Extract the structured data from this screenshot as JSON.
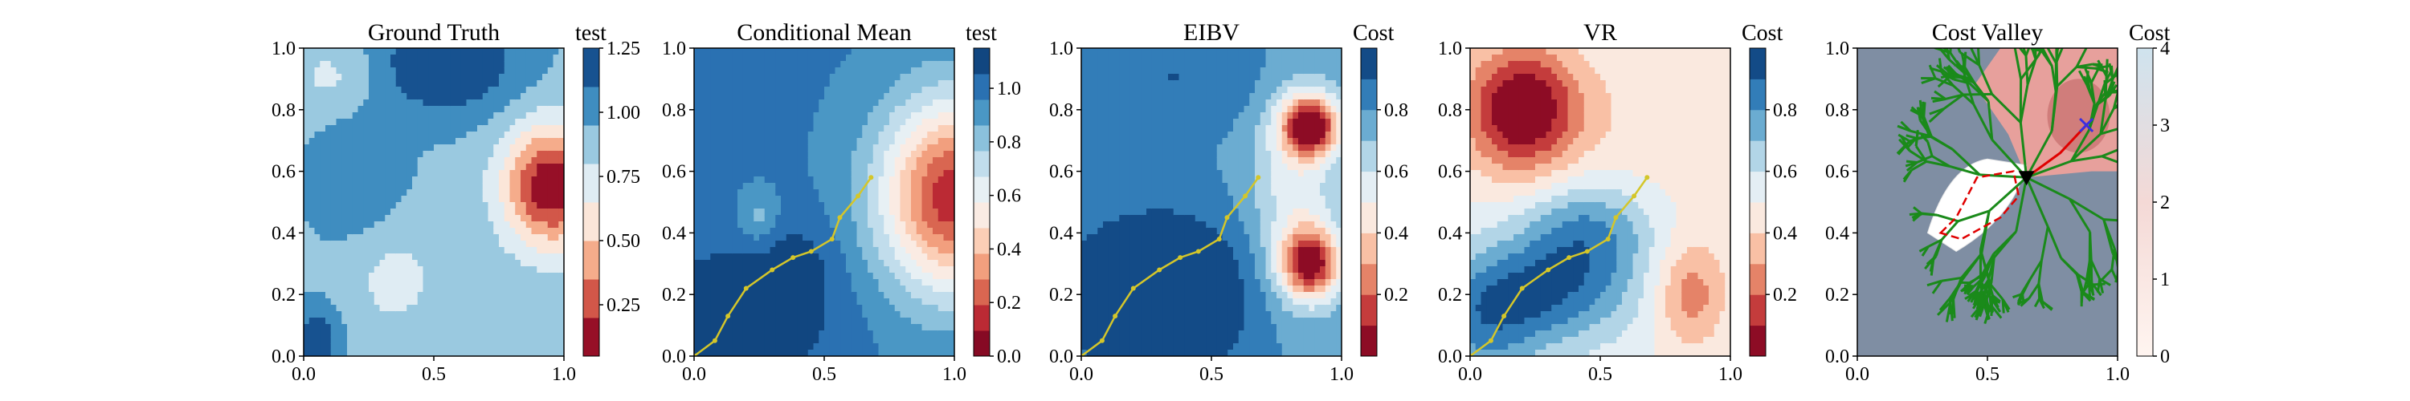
{
  "chart_data": [
    {
      "type": "heatmap",
      "title": "Ground Truth",
      "colorbar_label": "test",
      "colormap": "RdBu discrete",
      "x_ticks": [
        "0.0",
        "0.5",
        "1.0"
      ],
      "y_ticks": [
        "0.0",
        "0.2",
        "0.4",
        "0.6",
        "0.8",
        "1.0"
      ],
      "xlim": [
        0,
        1
      ],
      "ylim": [
        0,
        1
      ],
      "colorbar_ticks": [
        "0.25",
        "0.50",
        "0.75",
        "1.00",
        "1.25"
      ],
      "colorbar_range": [
        0.05,
        1.25
      ],
      "colorbar_levels": 8,
      "field": {
        "base": 0.92,
        "features": [
          {
            "x": 0.95,
            "y": 0.55,
            "sx": 0.13,
            "sy": 0.14,
            "amp": -0.85
          },
          {
            "x": 0.55,
            "y": 0.95,
            "sx": 0.2,
            "sy": 0.12,
            "amp": 0.35
          },
          {
            "x": 0.2,
            "y": 0.6,
            "sx": 0.12,
            "sy": 0.15,
            "amp": 0.18
          },
          {
            "x": 0.35,
            "y": 0.25,
            "sx": 0.12,
            "sy": 0.12,
            "amp": -0.18
          },
          {
            "x": 0.05,
            "y": 0.05,
            "sx": 0.06,
            "sy": 0.08,
            "amp": 0.3
          },
          {
            "x": 0.12,
            "y": 0.9,
            "sx": 0.12,
            "sy": 0.1,
            "amp": -0.18
          }
        ]
      }
    },
    {
      "type": "heatmap",
      "title": "Conditional Mean",
      "colorbar_label": "test",
      "colormap": "RdBu discrete",
      "x_ticks": [
        "0.0",
        "0.5",
        "1.0"
      ],
      "y_ticks": [
        "0.0",
        "0.2",
        "0.4",
        "0.6",
        "0.8",
        "1.0"
      ],
      "xlim": [
        0,
        1
      ],
      "ylim": [
        0,
        1
      ],
      "colorbar_ticks": [
        "0.0",
        "0.2",
        "0.4",
        "0.6",
        "0.8",
        "1.0"
      ],
      "colorbar_range": [
        0.0,
        1.15
      ],
      "colorbar_levels": 12,
      "field": {
        "base": 0.97,
        "features": [
          {
            "x": 1.0,
            "y": 0.52,
            "sx": 0.2,
            "sy": 0.22,
            "amp": -0.85
          },
          {
            "x": 0.1,
            "y": 0.1,
            "sx": 0.25,
            "sy": 0.15,
            "amp": 0.25
          },
          {
            "x": 0.4,
            "y": 0.3,
            "sx": 0.12,
            "sy": 0.12,
            "amp": 0.1
          },
          {
            "x": 0.25,
            "y": 0.45,
            "sx": 0.05,
            "sy": 0.06,
            "amp": -0.15
          }
        ]
      },
      "path": [
        [
          0,
          0
        ],
        [
          0.08,
          0.05
        ],
        [
          0.13,
          0.13
        ],
        [
          0.2,
          0.22
        ],
        [
          0.3,
          0.28
        ],
        [
          0.38,
          0.32
        ],
        [
          0.45,
          0.34
        ],
        [
          0.53,
          0.38
        ],
        [
          0.56,
          0.45
        ],
        [
          0.63,
          0.52
        ],
        [
          0.68,
          0.58
        ]
      ]
    },
    {
      "type": "heatmap",
      "title": "EIBV",
      "colorbar_label": "Cost",
      "colormap": "RdBu discrete",
      "x_ticks": [
        "0.0",
        "0.5",
        "1.0"
      ],
      "y_ticks": [
        "0.0",
        "0.2",
        "0.4",
        "0.6",
        "0.8",
        "1.0"
      ],
      "xlim": [
        0,
        1
      ],
      "ylim": [
        0,
        1
      ],
      "colorbar_ticks": [
        "0.2",
        "0.4",
        "0.6",
        "0.8"
      ],
      "colorbar_range": [
        0.0,
        1.0
      ],
      "colorbar_levels": 10,
      "field": {
        "base": 0.78,
        "features": [
          {
            "x": 0.88,
            "y": 0.75,
            "sx": 0.08,
            "sy": 0.07,
            "amp": -0.75
          },
          {
            "x": 0.88,
            "y": 0.3,
            "sx": 0.08,
            "sy": 0.08,
            "amp": -0.7
          },
          {
            "x": 0.82,
            "y": 0.52,
            "sx": 0.12,
            "sy": 0.25,
            "amp": -0.25
          },
          {
            "x": 0.3,
            "y": 0.2,
            "sx": 0.28,
            "sy": 0.2,
            "amp": 0.3
          },
          {
            "x": 0.35,
            "y": 0.9,
            "sx": 0.3,
            "sy": 0.12,
            "amp": 0.12
          }
        ]
      },
      "path": [
        [
          0,
          0
        ],
        [
          0.08,
          0.05
        ],
        [
          0.13,
          0.13
        ],
        [
          0.2,
          0.22
        ],
        [
          0.3,
          0.28
        ],
        [
          0.38,
          0.32
        ],
        [
          0.45,
          0.34
        ],
        [
          0.53,
          0.38
        ],
        [
          0.56,
          0.45
        ],
        [
          0.63,
          0.52
        ],
        [
          0.68,
          0.58
        ]
      ]
    },
    {
      "type": "heatmap",
      "title": "VR",
      "colorbar_label": "Cost",
      "colormap": "RdBu discrete",
      "x_ticks": [
        "0.0",
        "0.5",
        "1.0"
      ],
      "y_ticks": [
        "0.0",
        "0.2",
        "0.4",
        "0.6",
        "0.8",
        "1.0"
      ],
      "xlim": [
        0,
        1
      ],
      "ylim": [
        0,
        1
      ],
      "colorbar_ticks": [
        "0.2",
        "0.4",
        "0.6",
        "0.8"
      ],
      "colorbar_range": [
        0.0,
        1.0
      ],
      "colorbar_levels": 10,
      "field": {
        "base": 0.52,
        "features": [
          {
            "x": 0.2,
            "y": 0.8,
            "sx": 0.16,
            "sy": 0.15,
            "amp": -0.55
          },
          {
            "x": 0.85,
            "y": 0.2,
            "sx": 0.1,
            "sy": 0.13,
            "amp": -0.28
          },
          {
            "x": 0.75,
            "y": 0.75,
            "sx": 0.25,
            "sy": 0.2,
            "amp": -0.1
          },
          {
            "x": 0.25,
            "y": 0.2,
            "sx": 0.25,
            "sy": 0.12,
            "amp": 0.35
          },
          {
            "x": 0.45,
            "y": 0.4,
            "sx": 0.18,
            "sy": 0.12,
            "amp": 0.3
          },
          {
            "x": 0.05,
            "y": 0.05,
            "sx": 0.15,
            "sy": 0.15,
            "amp": 0.2
          }
        ]
      },
      "path": [
        [
          0,
          0
        ],
        [
          0.08,
          0.05
        ],
        [
          0.13,
          0.13
        ],
        [
          0.2,
          0.22
        ],
        [
          0.3,
          0.28
        ],
        [
          0.38,
          0.32
        ],
        [
          0.45,
          0.34
        ],
        [
          0.53,
          0.38
        ],
        [
          0.56,
          0.45
        ],
        [
          0.63,
          0.52
        ],
        [
          0.68,
          0.58
        ]
      ]
    },
    {
      "type": "heatmap",
      "title": "Cost Valley",
      "colorbar_label": "Cost",
      "colormap": "Reds light",
      "x_ticks": [
        "0.0",
        "0.5",
        "1.0"
      ],
      "y_ticks": [
        "0.0",
        "0.2",
        "0.4",
        "0.6",
        "0.8",
        "1.0"
      ],
      "xlim": [
        0,
        1
      ],
      "ylim": [
        0,
        1
      ],
      "colorbar_ticks": [
        "0",
        "1",
        "2",
        "3",
        "4"
      ],
      "colorbar_range": [
        0,
        4
      ],
      "colorbar_levels": 0,
      "markers": {
        "current": [
          0.65,
          0.58
        ],
        "next": [
          0.88,
          0.75
        ]
      },
      "planned_polygon": [
        [
          0.32,
          0.4
        ],
        [
          0.38,
          0.45
        ],
        [
          0.46,
          0.58
        ],
        [
          0.6,
          0.6
        ],
        [
          0.62,
          0.52
        ],
        [
          0.55,
          0.45
        ],
        [
          0.4,
          0.38
        ]
      ]
    }
  ]
}
